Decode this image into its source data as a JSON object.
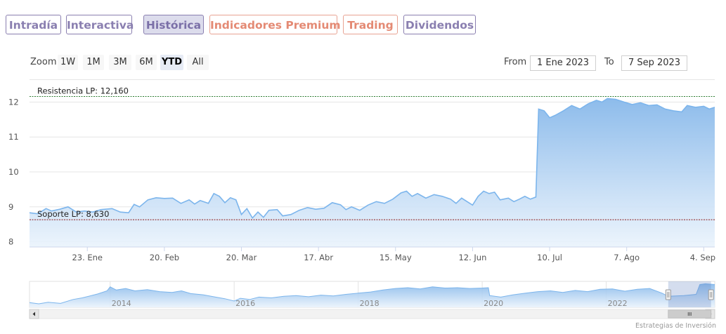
{
  "tabs": [
    {
      "label": "Intradía",
      "style": "purple",
      "active": false
    },
    {
      "label": "Interactiva",
      "style": "purple",
      "active": false
    },
    {
      "label": "Histórica",
      "style": "purple",
      "active": true
    },
    {
      "label": "Indicadores Premium",
      "style": "orange",
      "active": false
    },
    {
      "label": "Trading",
      "style": "orange",
      "active": false
    },
    {
      "label": "Dividendos",
      "style": "purple",
      "active": false
    }
  ],
  "zoom": {
    "label": "Zoom",
    "buttons": [
      "1W",
      "1M",
      "3M",
      "6M",
      "YTD",
      "All"
    ],
    "selected": "YTD"
  },
  "range": {
    "from_label": "From",
    "from": "1 Ene 2023",
    "to_label": "To",
    "to": "7 Sep 2023"
  },
  "credit": "Estrategias de Inversión",
  "colors": {
    "line": "#7cb5ec",
    "fill_top": "#87b8ea",
    "fill_bottom": "#eaf3fc",
    "resistance": "#2e7d32",
    "support": "#8b1a1a"
  },
  "chart_data": {
    "type": "area",
    "y_ticks": [
      8,
      9,
      10,
      11,
      12
    ],
    "ylim": [
      7.85,
      12.25
    ],
    "x_range": [
      "2023-01-02",
      "2023-09-08"
    ],
    "x_ticks": [
      {
        "date": "2023-01-23",
        "label": "23. Ene"
      },
      {
        "date": "2023-02-20",
        "label": "20. Feb"
      },
      {
        "date": "2023-03-20",
        "label": "20. Mar"
      },
      {
        "date": "2023-04-17",
        "label": "17. Abr"
      },
      {
        "date": "2023-05-15",
        "label": "15. May"
      },
      {
        "date": "2023-06-12",
        "label": "12. Jun"
      },
      {
        "date": "2023-07-10",
        "label": "10. Jul"
      },
      {
        "date": "2023-08-07",
        "label": "7. Ago"
      },
      {
        "date": "2023-09-04",
        "label": "4. Sep"
      }
    ],
    "resistance": {
      "label": "Resistencia LP: 12,160",
      "value": 12.16
    },
    "support": {
      "label": "Soporte LP: 8,630",
      "value": 8.63
    },
    "series": [
      {
        "values": [
          [
            "2023-01-02",
            8.83
          ],
          [
            "2023-01-05",
            8.8
          ],
          [
            "2023-01-08",
            8.95
          ],
          [
            "2023-01-10",
            8.88
          ],
          [
            "2023-01-13",
            8.93
          ],
          [
            "2023-01-16",
            9.0
          ],
          [
            "2023-01-19",
            8.85
          ],
          [
            "2023-01-22",
            8.88
          ],
          [
            "2023-01-25",
            8.85
          ],
          [
            "2023-01-28",
            8.92
          ],
          [
            "2023-02-01",
            8.95
          ],
          [
            "2023-02-04",
            8.85
          ],
          [
            "2023-02-07",
            8.83
          ],
          [
            "2023-02-09",
            9.07
          ],
          [
            "2023-02-11",
            9.0
          ],
          [
            "2023-02-14",
            9.2
          ],
          [
            "2023-02-17",
            9.26
          ],
          [
            "2023-02-20",
            9.24
          ],
          [
            "2023-02-23",
            9.25
          ],
          [
            "2023-02-26",
            9.1
          ],
          [
            "2023-03-01",
            9.2
          ],
          [
            "2023-03-03",
            9.08
          ],
          [
            "2023-03-05",
            9.18
          ],
          [
            "2023-03-08",
            9.1
          ],
          [
            "2023-03-10",
            9.38
          ],
          [
            "2023-03-12",
            9.3
          ],
          [
            "2023-03-14",
            9.12
          ],
          [
            "2023-03-16",
            9.26
          ],
          [
            "2023-03-18",
            9.2
          ],
          [
            "2023-03-20",
            8.78
          ],
          [
            "2023-03-22",
            8.95
          ],
          [
            "2023-03-24",
            8.68
          ],
          [
            "2023-03-26",
            8.85
          ],
          [
            "2023-03-28",
            8.7
          ],
          [
            "2023-03-30",
            8.9
          ],
          [
            "2023-04-02",
            8.92
          ],
          [
            "2023-04-04",
            8.74
          ],
          [
            "2023-04-07",
            8.78
          ],
          [
            "2023-04-10",
            8.9
          ],
          [
            "2023-04-13",
            8.98
          ],
          [
            "2023-04-16",
            8.93
          ],
          [
            "2023-04-19",
            8.96
          ],
          [
            "2023-04-22",
            9.12
          ],
          [
            "2023-04-25",
            9.06
          ],
          [
            "2023-04-27",
            8.92
          ],
          [
            "2023-04-29",
            9.0
          ],
          [
            "2023-05-02",
            8.9
          ],
          [
            "2023-05-05",
            9.05
          ],
          [
            "2023-05-08",
            9.15
          ],
          [
            "2023-05-11",
            9.1
          ],
          [
            "2023-05-14",
            9.22
          ],
          [
            "2023-05-17",
            9.4
          ],
          [
            "2023-05-19",
            9.45
          ],
          [
            "2023-05-21",
            9.3
          ],
          [
            "2023-05-23",
            9.38
          ],
          [
            "2023-05-26",
            9.25
          ],
          [
            "2023-05-29",
            9.35
          ],
          [
            "2023-06-01",
            9.3
          ],
          [
            "2023-06-04",
            9.22
          ],
          [
            "2023-06-06",
            9.1
          ],
          [
            "2023-06-08",
            9.25
          ],
          [
            "2023-06-10",
            9.15
          ],
          [
            "2023-06-12",
            9.05
          ],
          [
            "2023-06-14",
            9.3
          ],
          [
            "2023-06-16",
            9.45
          ],
          [
            "2023-06-18",
            9.38
          ],
          [
            "2023-06-20",
            9.42
          ],
          [
            "2023-06-22",
            9.2
          ],
          [
            "2023-06-25",
            9.25
          ],
          [
            "2023-06-27",
            9.15
          ],
          [
            "2023-06-29",
            9.22
          ],
          [
            "2023-07-01",
            9.3
          ],
          [
            "2023-07-03",
            9.22
          ],
          [
            "2023-07-05",
            9.28
          ],
          [
            "2023-07-06",
            11.8
          ],
          [
            "2023-07-08",
            11.75
          ],
          [
            "2023-07-10",
            11.55
          ],
          [
            "2023-07-12",
            11.62
          ],
          [
            "2023-07-15",
            11.75
          ],
          [
            "2023-07-18",
            11.9
          ],
          [
            "2023-07-21",
            11.8
          ],
          [
            "2023-07-24",
            11.95
          ],
          [
            "2023-07-27",
            12.05
          ],
          [
            "2023-07-29",
            12.0
          ],
          [
            "2023-07-31",
            12.1
          ],
          [
            "2023-08-03",
            12.08
          ],
          [
            "2023-08-06",
            12.0
          ],
          [
            "2023-08-09",
            11.93
          ],
          [
            "2023-08-12",
            11.98
          ],
          [
            "2023-08-15",
            11.9
          ],
          [
            "2023-08-18",
            11.92
          ],
          [
            "2023-08-21",
            11.8
          ],
          [
            "2023-08-24",
            11.75
          ],
          [
            "2023-08-27",
            11.72
          ],
          [
            "2023-08-29",
            11.9
          ],
          [
            "2023-09-01",
            11.85
          ],
          [
            "2023-09-04",
            11.88
          ],
          [
            "2023-09-06",
            11.8
          ],
          [
            "2023-09-08",
            11.85
          ]
        ]
      }
    ]
  },
  "navigator": {
    "type": "area",
    "year_labels": [
      "2014",
      "2016",
      "2018",
      "2020",
      "2022"
    ],
    "x_range": [
      2012.7,
      2023.75
    ],
    "ylim": [
      6,
      12.6
    ],
    "values": [
      [
        2012.7,
        7.2
      ],
      [
        2012.85,
        6.9
      ],
      [
        2013.0,
        7.3
      ],
      [
        2013.2,
        7.0
      ],
      [
        2013.4,
        8.0
      ],
      [
        2013.55,
        8.4
      ],
      [
        2013.8,
        9.4
      ],
      [
        2013.95,
        10.2
      ],
      [
        2014.0,
        11.2
      ],
      [
        2014.1,
        10.4
      ],
      [
        2014.25,
        10.8
      ],
      [
        2014.4,
        10.2
      ],
      [
        2014.6,
        10.5
      ],
      [
        2014.8,
        10.0
      ],
      [
        2015.0,
        9.8
      ],
      [
        2015.15,
        10.2
      ],
      [
        2015.3,
        9.5
      ],
      [
        2015.5,
        9.2
      ],
      [
        2015.7,
        8.6
      ],
      [
        2015.85,
        8.2
      ],
      [
        2016.0,
        7.6
      ],
      [
        2016.1,
        8.3
      ],
      [
        2016.25,
        8.0
      ],
      [
        2016.4,
        8.6
      ],
      [
        2016.6,
        8.4
      ],
      [
        2016.8,
        8.8
      ],
      [
        2017.0,
        9.0
      ],
      [
        2017.2,
        8.7
      ],
      [
        2017.4,
        9.1
      ],
      [
        2017.6,
        8.9
      ],
      [
        2017.8,
        9.3
      ],
      [
        2018.0,
        9.6
      ],
      [
        2018.2,
        9.9
      ],
      [
        2018.4,
        10.4
      ],
      [
        2018.6,
        10.8
      ],
      [
        2018.8,
        11.0
      ],
      [
        2019.0,
        10.7
      ],
      [
        2019.2,
        11.2
      ],
      [
        2019.4,
        10.9
      ],
      [
        2019.6,
        11.0
      ],
      [
        2019.8,
        10.8
      ],
      [
        2020.0,
        10.9
      ],
      [
        2020.1,
        11.0
      ],
      [
        2020.12,
        9.0
      ],
      [
        2020.3,
        8.6
      ],
      [
        2020.5,
        9.2
      ],
      [
        2020.7,
        9.6
      ],
      [
        2020.9,
        10.0
      ],
      [
        2021.1,
        10.2
      ],
      [
        2021.3,
        9.8
      ],
      [
        2021.5,
        10.3
      ],
      [
        2021.7,
        10.0
      ],
      [
        2021.9,
        10.6
      ],
      [
        2022.1,
        10.7
      ],
      [
        2022.3,
        10.1
      ],
      [
        2022.5,
        10.6
      ],
      [
        2022.7,
        10.8
      ],
      [
        2022.9,
        9.6
      ],
      [
        2023.0,
        8.8
      ],
      [
        2023.25,
        9.0
      ],
      [
        2023.45,
        9.3
      ],
      [
        2023.51,
        11.8
      ],
      [
        2023.6,
        12.0
      ],
      [
        2023.75,
        11.8
      ]
    ],
    "selection": [
      2023.0,
      2023.69
    ]
  }
}
